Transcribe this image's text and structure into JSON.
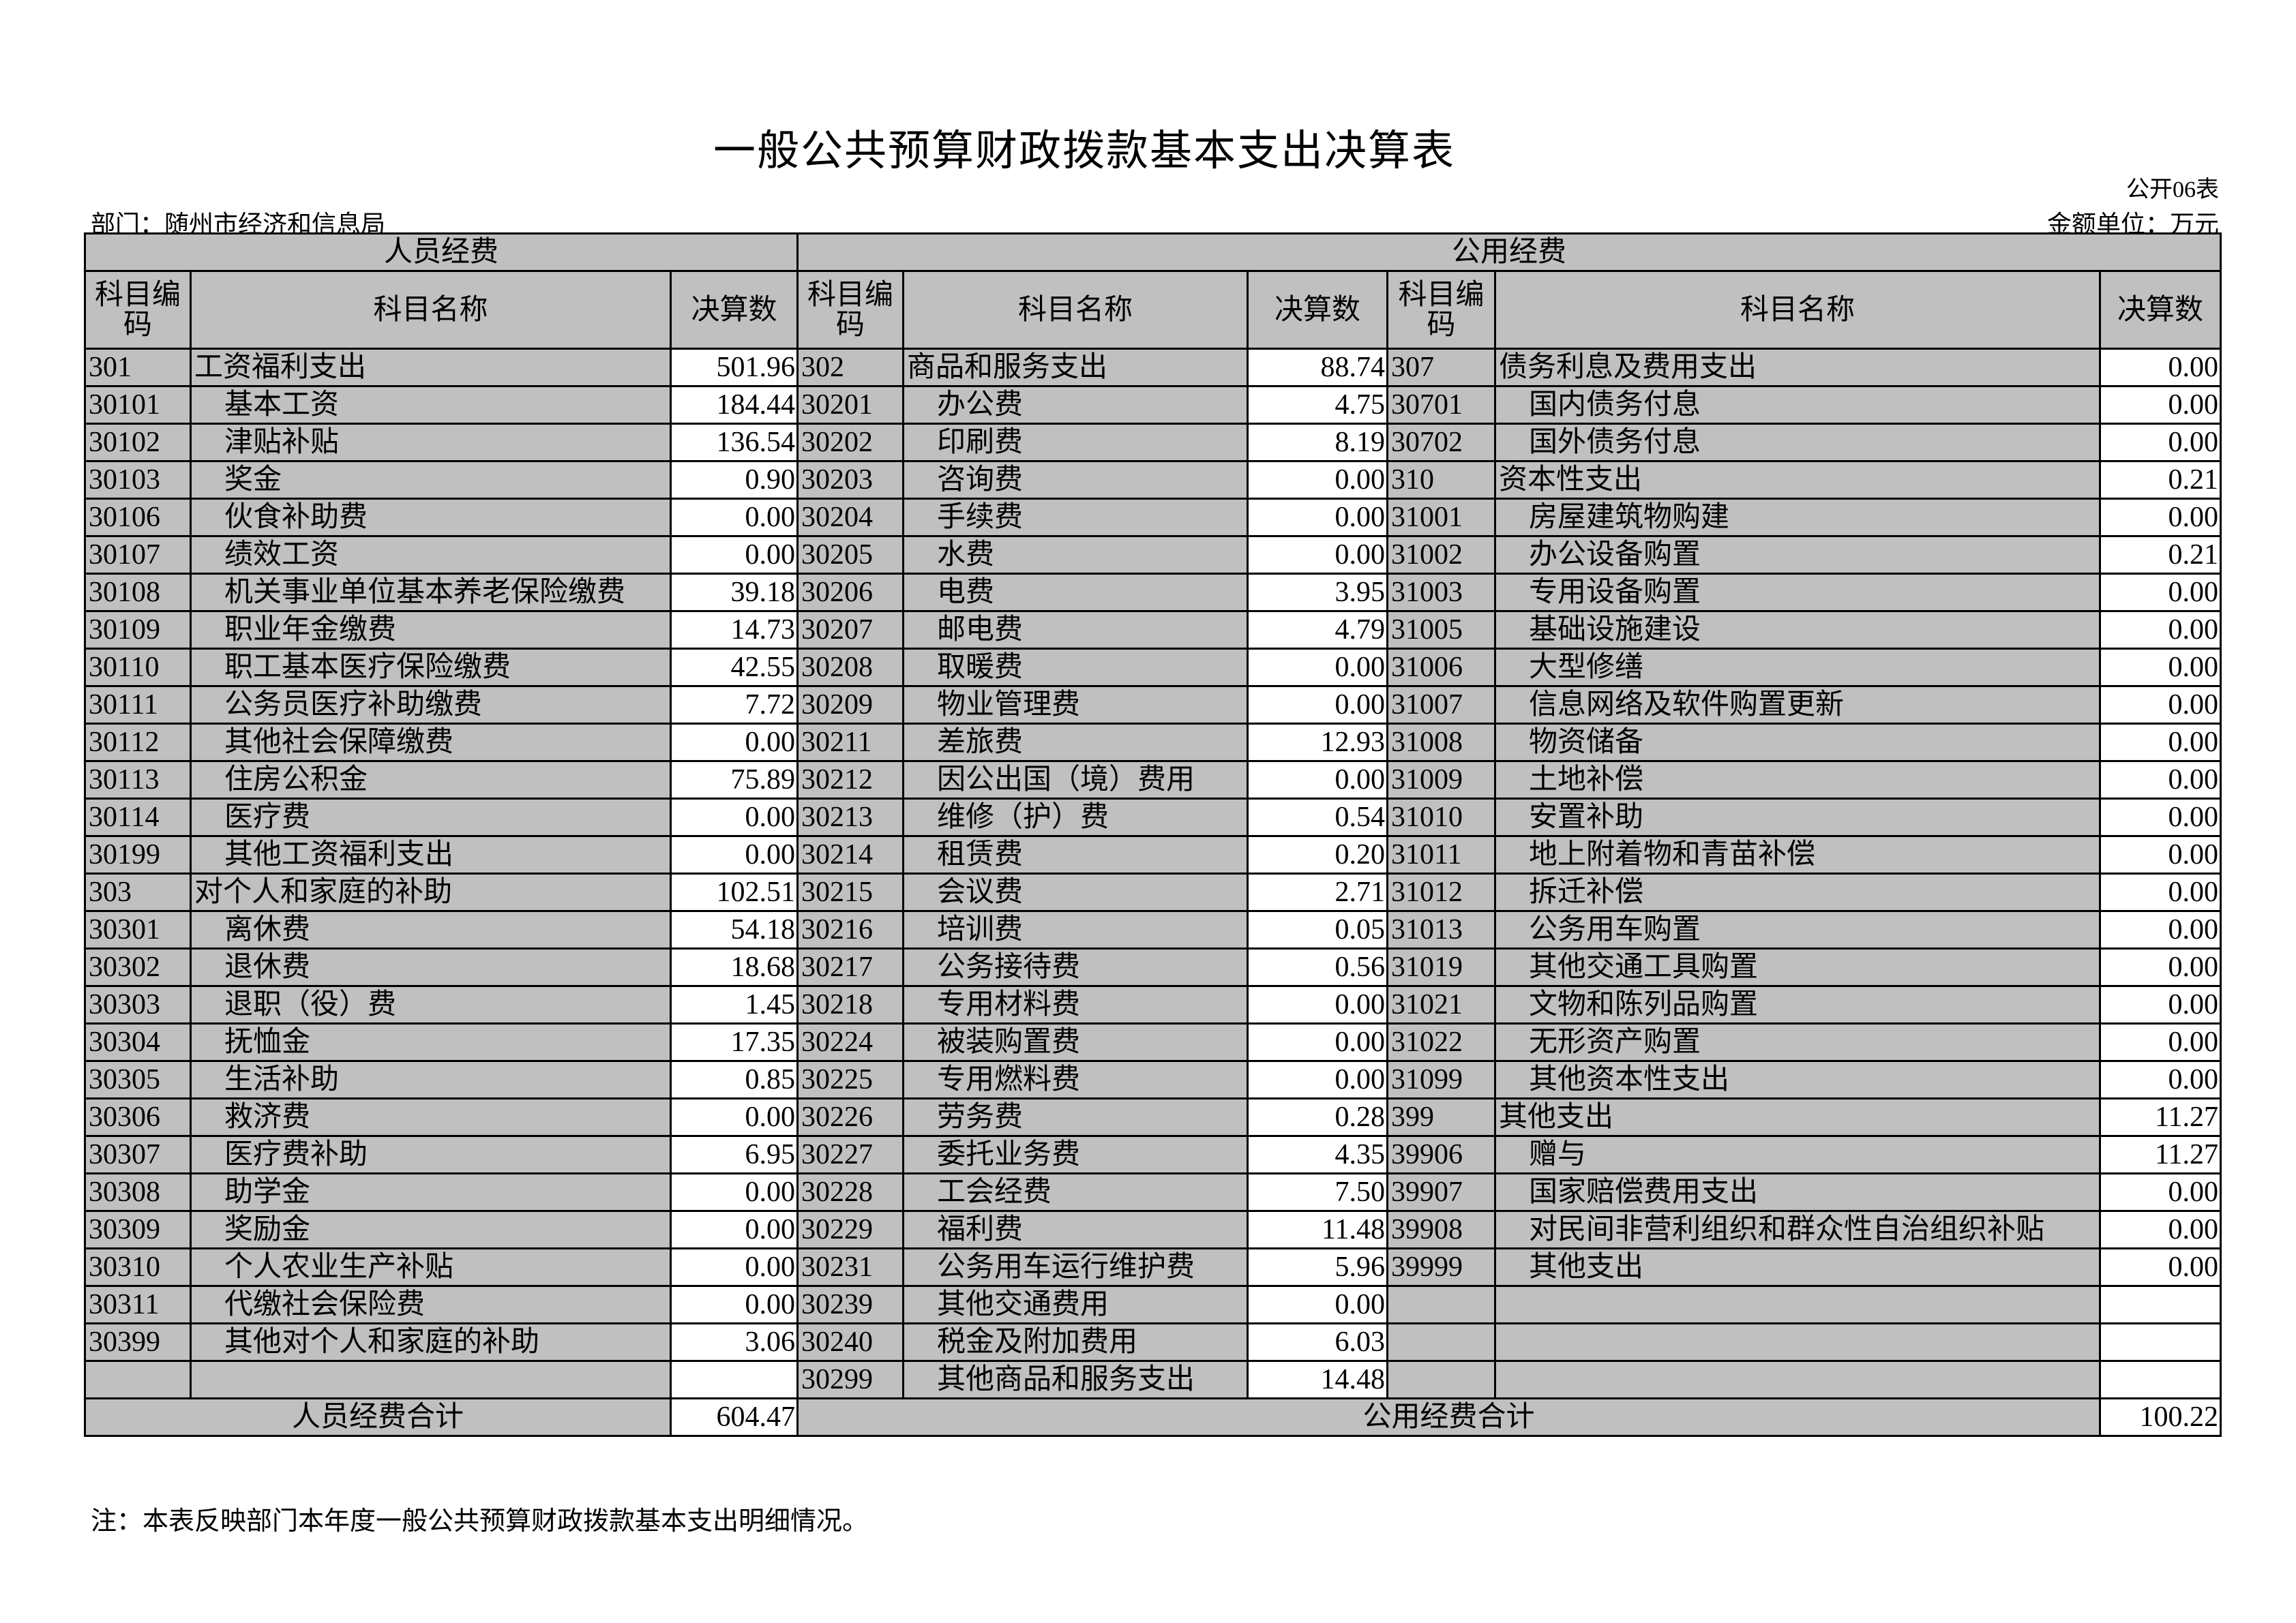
{
  "title": "一般公共预算财政拨款基本支出决算表",
  "form_no": "公开06表",
  "department": "部门：随州市经济和信息局",
  "unit": "金额单位：万元",
  "colors": {
    "cell_bg": "#c0c0c0",
    "value_bg": "#ffffff",
    "border": "#000000"
  },
  "headers": {
    "personnel": "人员经费",
    "public": "公用经费",
    "code": "科目编码",
    "name": "科目名称",
    "amount": "决算数"
  },
  "personnel_rows": [
    {
      "code": "301",
      "name": "工资福利支出",
      "level": 0,
      "amount": "501.96"
    },
    {
      "code": "30101",
      "name": "基本工资",
      "level": 1,
      "amount": "184.44"
    },
    {
      "code": "30102",
      "name": "津贴补贴",
      "level": 1,
      "amount": "136.54"
    },
    {
      "code": "30103",
      "name": "奖金",
      "level": 1,
      "amount": "0.90"
    },
    {
      "code": "30106",
      "name": "伙食补助费",
      "level": 1,
      "amount": "0.00"
    },
    {
      "code": "30107",
      "name": "绩效工资",
      "level": 1,
      "amount": "0.00"
    },
    {
      "code": "30108",
      "name": "机关事业单位基本养老保险缴费",
      "level": 1,
      "amount": "39.18"
    },
    {
      "code": "30109",
      "name": "职业年金缴费",
      "level": 1,
      "amount": "14.73"
    },
    {
      "code": "30110",
      "name": "职工基本医疗保险缴费",
      "level": 1,
      "amount": "42.55"
    },
    {
      "code": "30111",
      "name": "公务员医疗补助缴费",
      "level": 1,
      "amount": "7.72"
    },
    {
      "code": "30112",
      "name": "其他社会保障缴费",
      "level": 1,
      "amount": "0.00"
    },
    {
      "code": "30113",
      "name": "住房公积金",
      "level": 1,
      "amount": "75.89"
    },
    {
      "code": "30114",
      "name": "医疗费",
      "level": 1,
      "amount": "0.00"
    },
    {
      "code": "30199",
      "name": "其他工资福利支出",
      "level": 1,
      "amount": "0.00"
    },
    {
      "code": "303",
      "name": "对个人和家庭的补助",
      "level": 0,
      "amount": "102.51"
    },
    {
      "code": "30301",
      "name": "离休费",
      "level": 1,
      "amount": "54.18"
    },
    {
      "code": "30302",
      "name": "退休费",
      "level": 1,
      "amount": "18.68"
    },
    {
      "code": "30303",
      "name": "退职（役）费",
      "level": 1,
      "amount": "1.45"
    },
    {
      "code": "30304",
      "name": "抚恤金",
      "level": 1,
      "amount": "17.35"
    },
    {
      "code": "30305",
      "name": "生活补助",
      "level": 1,
      "amount": "0.85"
    },
    {
      "code": "30306",
      "name": "救济费",
      "level": 1,
      "amount": "0.00"
    },
    {
      "code": "30307",
      "name": "医疗费补助",
      "level": 1,
      "amount": "6.95"
    },
    {
      "code": "30308",
      "name": "助学金",
      "level": 1,
      "amount": "0.00"
    },
    {
      "code": "30309",
      "name": "奖励金",
      "level": 1,
      "amount": "0.00"
    },
    {
      "code": "30310",
      "name": "个人农业生产补贴",
      "level": 1,
      "amount": "0.00"
    },
    {
      "code": "30311",
      "name": "代缴社会保险费",
      "level": 1,
      "amount": "0.00"
    },
    {
      "code": "30399",
      "name": "其他对个人和家庭的补助",
      "level": 1,
      "amount": "3.06"
    }
  ],
  "public_rows_a": [
    {
      "code": "302",
      "name": "商品和服务支出",
      "level": 0,
      "amount": "88.74"
    },
    {
      "code": "30201",
      "name": "办公费",
      "level": 1,
      "amount": "4.75"
    },
    {
      "code": "30202",
      "name": "印刷费",
      "level": 1,
      "amount": "8.19"
    },
    {
      "code": "30203",
      "name": "咨询费",
      "level": 1,
      "amount": "0.00"
    },
    {
      "code": "30204",
      "name": "手续费",
      "level": 1,
      "amount": "0.00"
    },
    {
      "code": "30205",
      "name": "水费",
      "level": 1,
      "amount": "0.00"
    },
    {
      "code": "30206",
      "name": "电费",
      "level": 1,
      "amount": "3.95"
    },
    {
      "code": "30207",
      "name": "邮电费",
      "level": 1,
      "amount": "4.79"
    },
    {
      "code": "30208",
      "name": "取暖费",
      "level": 1,
      "amount": "0.00"
    },
    {
      "code": "30209",
      "name": "物业管理费",
      "level": 1,
      "amount": "0.00"
    },
    {
      "code": "30211",
      "name": "差旅费",
      "level": 1,
      "amount": "12.93"
    },
    {
      "code": "30212",
      "name": "因公出国（境）费用",
      "level": 1,
      "amount": "0.00"
    },
    {
      "code": "30213",
      "name": "维修（护）费",
      "level": 1,
      "amount": "0.54"
    },
    {
      "code": "30214",
      "name": "租赁费",
      "level": 1,
      "amount": "0.20"
    },
    {
      "code": "30215",
      "name": "会议费",
      "level": 1,
      "amount": "2.71"
    },
    {
      "code": "30216",
      "name": "培训费",
      "level": 1,
      "amount": "0.05"
    },
    {
      "code": "30217",
      "name": "公务接待费",
      "level": 1,
      "amount": "0.56"
    },
    {
      "code": "30218",
      "name": "专用材料费",
      "level": 1,
      "amount": "0.00"
    },
    {
      "code": "30224",
      "name": "被装购置费",
      "level": 1,
      "amount": "0.00"
    },
    {
      "code": "30225",
      "name": "专用燃料费",
      "level": 1,
      "amount": "0.00"
    },
    {
      "code": "30226",
      "name": "劳务费",
      "level": 1,
      "amount": "0.28"
    },
    {
      "code": "30227",
      "name": "委托业务费",
      "level": 1,
      "amount": "4.35"
    },
    {
      "code": "30228",
      "name": "工会经费",
      "level": 1,
      "amount": "7.50"
    },
    {
      "code": "30229",
      "name": "福利费",
      "level": 1,
      "amount": "11.48"
    },
    {
      "code": "30231",
      "name": "公务用车运行维护费",
      "level": 1,
      "amount": "5.96"
    },
    {
      "code": "30239",
      "name": "其他交通费用",
      "level": 1,
      "amount": "0.00"
    },
    {
      "code": "30240",
      "name": "税金及附加费用",
      "level": 1,
      "amount": "6.03"
    },
    {
      "code": "30299",
      "name": "其他商品和服务支出",
      "level": 1,
      "amount": "14.48"
    }
  ],
  "public_rows_b": [
    {
      "code": "307",
      "name": "债务利息及费用支出",
      "level": 0,
      "amount": "0.00"
    },
    {
      "code": "30701",
      "name": "国内债务付息",
      "level": 1,
      "amount": "0.00"
    },
    {
      "code": "30702",
      "name": "国外债务付息",
      "level": 1,
      "amount": "0.00"
    },
    {
      "code": "310",
      "name": "资本性支出",
      "level": 0,
      "amount": "0.21"
    },
    {
      "code": "31001",
      "name": "房屋建筑物购建",
      "level": 1,
      "amount": "0.00"
    },
    {
      "code": "31002",
      "name": "办公设备购置",
      "level": 1,
      "amount": "0.21"
    },
    {
      "code": "31003",
      "name": "专用设备购置",
      "level": 1,
      "amount": "0.00"
    },
    {
      "code": "31005",
      "name": "基础设施建设",
      "level": 1,
      "amount": "0.00"
    },
    {
      "code": "31006",
      "name": "大型修缮",
      "level": 1,
      "amount": "0.00"
    },
    {
      "code": "31007",
      "name": "信息网络及软件购置更新",
      "level": 1,
      "amount": "0.00"
    },
    {
      "code": "31008",
      "name": "物资储备",
      "level": 1,
      "amount": "0.00"
    },
    {
      "code": "31009",
      "name": "土地补偿",
      "level": 1,
      "amount": "0.00"
    },
    {
      "code": "31010",
      "name": "安置补助",
      "level": 1,
      "amount": "0.00"
    },
    {
      "code": "31011",
      "name": "地上附着物和青苗补偿",
      "level": 1,
      "amount": "0.00"
    },
    {
      "code": "31012",
      "name": "拆迁补偿",
      "level": 1,
      "amount": "0.00"
    },
    {
      "code": "31013",
      "name": "公务用车购置",
      "level": 1,
      "amount": "0.00"
    },
    {
      "code": "31019",
      "name": "其他交通工具购置",
      "level": 1,
      "amount": "0.00"
    },
    {
      "code": "31021",
      "name": "文物和陈列品购置",
      "level": 1,
      "amount": "0.00"
    },
    {
      "code": "31022",
      "name": "无形资产购置",
      "level": 1,
      "amount": "0.00"
    },
    {
      "code": "31099",
      "name": "其他资本性支出",
      "level": 1,
      "amount": "0.00"
    },
    {
      "code": "399",
      "name": "其他支出",
      "level": 0,
      "amount": "11.27"
    },
    {
      "code": "39906",
      "name": "赠与",
      "level": 1,
      "amount": "11.27"
    },
    {
      "code": "39907",
      "name": "国家赔偿费用支出",
      "level": 1,
      "amount": "0.00"
    },
    {
      "code": "39908",
      "name": "对民间非营利组织和群众性自治组织补贴",
      "level": 1,
      "amount": "0.00"
    },
    {
      "code": "39999",
      "name": "其他支出",
      "level": 1,
      "amount": "0.00"
    }
  ],
  "totals": {
    "personnel_label": "人员经费合计",
    "personnel_amount": "604.47",
    "public_label": "公用经费合计",
    "public_amount": "100.22"
  },
  "note": "注：本表反映部门本年度一般公共预算财政拨款基本支出明细情况。"
}
